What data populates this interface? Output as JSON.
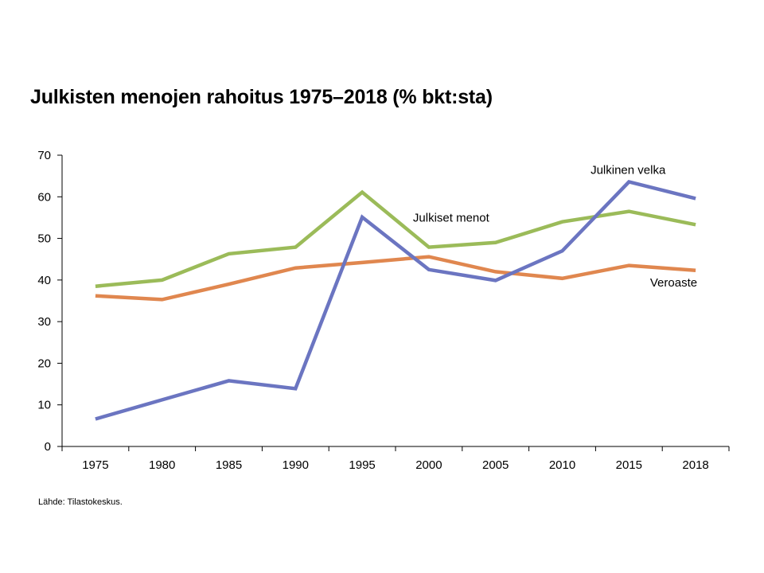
{
  "title": "Julkisten menojen rahoitus 1975–2018 (% bkt:sta)",
  "source": "Lähde: Tilastokeskus.",
  "chart_data": {
    "type": "line",
    "categories": [
      "1975",
      "1980",
      "1985",
      "1990",
      "1995",
      "2000",
      "2005",
      "2010",
      "2015",
      "2018"
    ],
    "ylim": [
      0,
      70
    ],
    "yticks": [
      0,
      10,
      20,
      30,
      40,
      50,
      60,
      70
    ],
    "grid": false,
    "series": [
      {
        "name": "Julkiset menot",
        "color": "#9bbb59",
        "values": [
          38.5,
          40.0,
          46.3,
          47.9,
          61.1,
          47.9,
          49.0,
          54.0,
          56.5,
          53.3
        ]
      },
      {
        "name": "Veroaste",
        "color": "#e0874f",
        "values": [
          36.2,
          35.3,
          39.0,
          42.9,
          44.2,
          45.6,
          42.0,
          40.4,
          43.5,
          42.3
        ]
      },
      {
        "name": "Julkinen velka",
        "color": "#6b75c1",
        "values": [
          6.6,
          11.2,
          15.8,
          13.9,
          55.1,
          42.5,
          39.9,
          47.0,
          63.6,
          59.6
        ]
      }
    ]
  }
}
